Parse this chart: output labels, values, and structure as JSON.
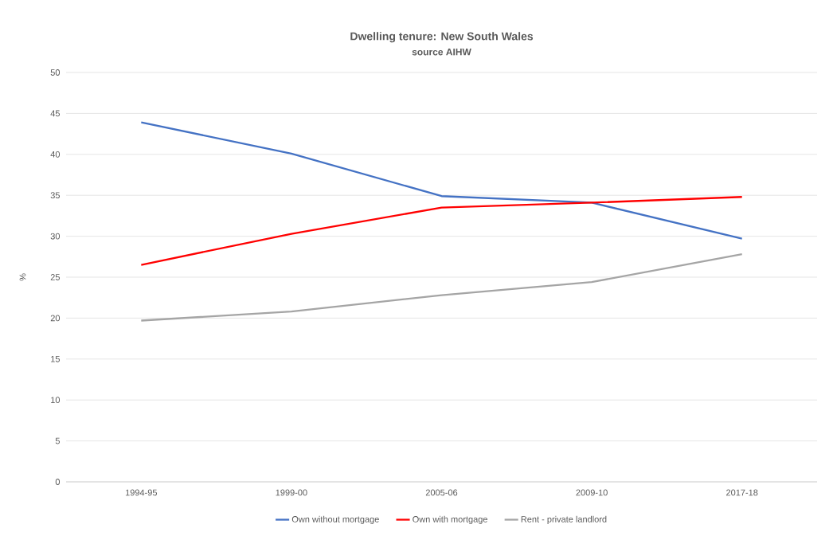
{
  "chart_data": {
    "type": "line",
    "title": "Dwelling tenure: New South Wales",
    "subtitle": "source AIHW",
    "ylabel": "%",
    "categories": [
      "1994-95",
      "1999-00",
      "2005-06",
      "2009-10",
      "2017-18"
    ],
    "series": [
      {
        "name": "Own without mortgage",
        "color": "#4472c4",
        "values": [
          43.9,
          40.1,
          34.9,
          34.1,
          29.7
        ]
      },
      {
        "name": "Own with mortgage",
        "color": "#ff0000",
        "values": [
          26.5,
          30.3,
          33.5,
          34.1,
          34.8
        ]
      },
      {
        "name": "Rent - private landlord",
        "color": "#a5a5a5",
        "values": [
          19.7,
          20.8,
          22.8,
          24.4,
          27.8
        ]
      }
    ],
    "ylim": [
      0,
      50
    ],
    "yticks": [
      0,
      5,
      10,
      15,
      20,
      25,
      30,
      35,
      40,
      45,
      50
    ],
    "grid": "y",
    "legend": "bottom",
    "marker": "none",
    "line_style": "solid"
  }
}
